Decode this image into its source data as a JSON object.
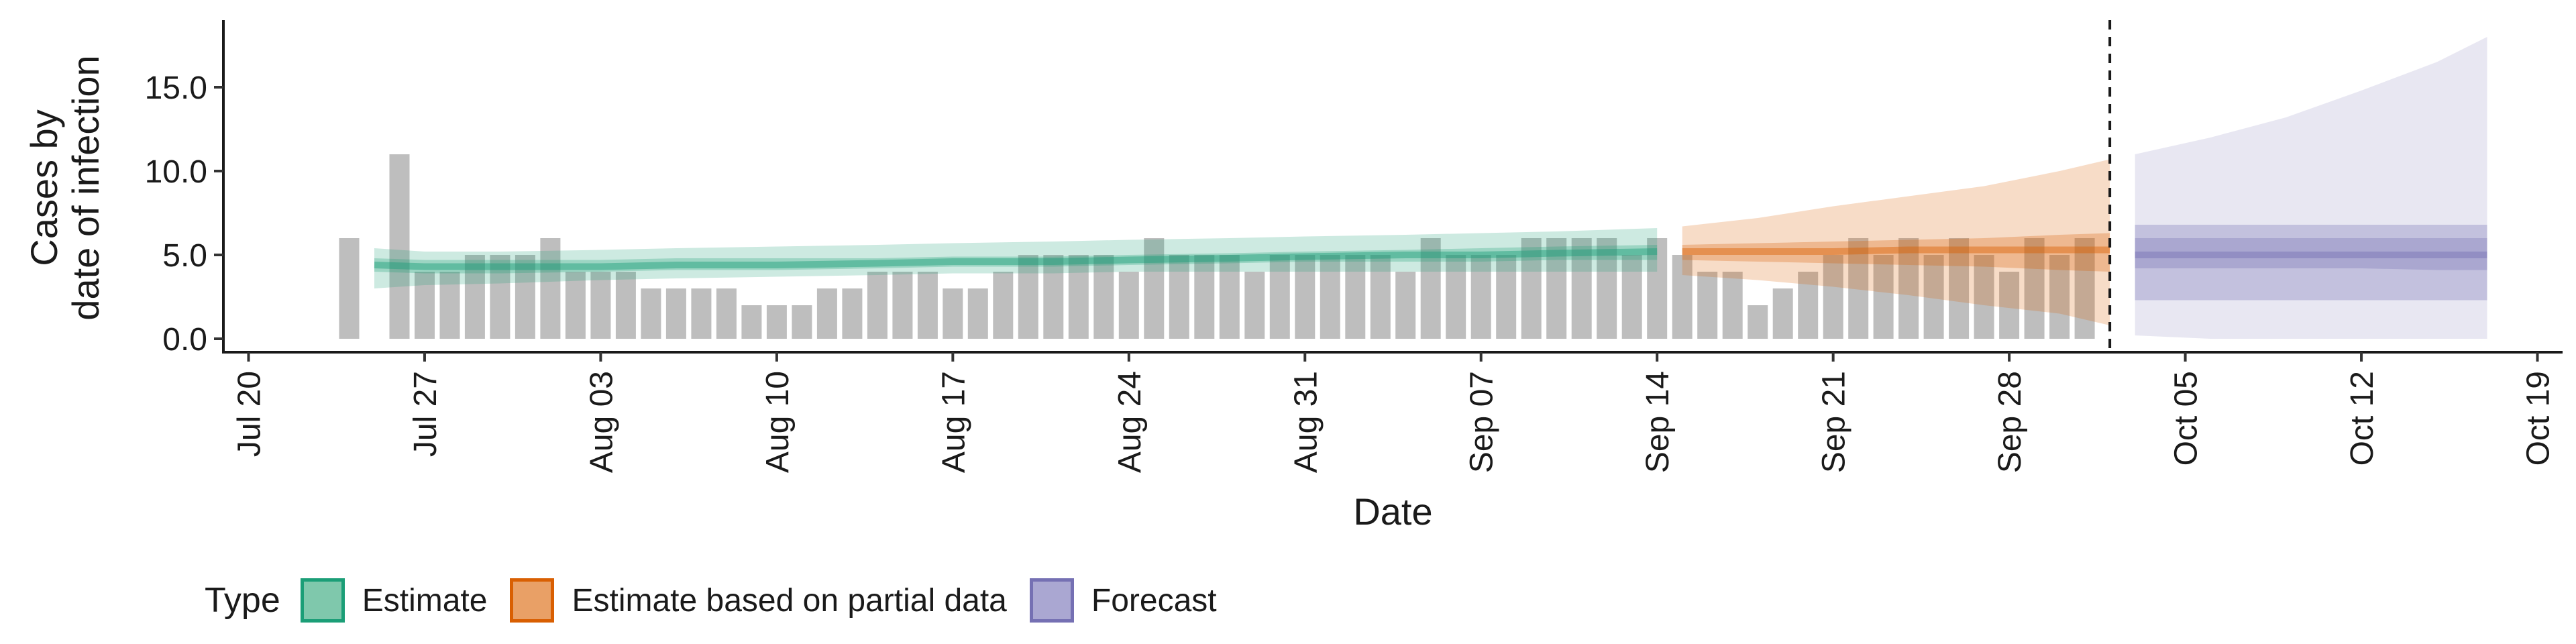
{
  "chart_data": {
    "type": "area",
    "xlabel": "Date",
    "ylabel": [
      "Cases by",
      "date of infection"
    ],
    "ylim": [
      -0.8,
      18.8
    ],
    "yticks": [
      "0.0",
      "5.0",
      "10.0",
      "15.0"
    ],
    "xlim": [
      "2020-07-19",
      "2020-10-20"
    ],
    "xticks": [
      {
        "date": "2020-07-20",
        "label": "Jul 20"
      },
      {
        "date": "2020-07-27",
        "label": "Jul 27"
      },
      {
        "date": "2020-08-03",
        "label": "Aug 03"
      },
      {
        "date": "2020-08-10",
        "label": "Aug 10"
      },
      {
        "date": "2020-08-17",
        "label": "Aug 17"
      },
      {
        "date": "2020-08-24",
        "label": "Aug 24"
      },
      {
        "date": "2020-08-31",
        "label": "Aug 31"
      },
      {
        "date": "2020-09-07",
        "label": "Sep 07"
      },
      {
        "date": "2020-09-14",
        "label": "Sep 14"
      },
      {
        "date": "2020-09-21",
        "label": "Sep 21"
      },
      {
        "date": "2020-09-28",
        "label": "Sep 28"
      },
      {
        "date": "2020-10-05",
        "label": "Oct 05"
      },
      {
        "date": "2020-10-12",
        "label": "Oct 12"
      },
      {
        "date": "2020-10-19",
        "label": "Oct 19"
      }
    ],
    "grid": false,
    "legend_position": "bottom",
    "forecast_line_date": "2020-10-02",
    "observed_cases": {
      "start_date": "2020-07-24",
      "values": [
        6,
        0,
        11,
        4,
        4,
        5,
        5,
        5,
        6,
        4,
        4,
        4,
        3,
        3,
        3,
        3,
        2,
        2,
        2,
        3,
        3,
        4,
        4,
        4,
        3,
        3,
        4,
        5,
        5,
        5,
        5,
        4,
        6,
        5,
        5,
        5,
        4,
        5,
        5,
        5,
        5,
        5,
        4,
        6,
        5,
        5,
        5,
        6,
        6,
        6,
        6,
        5,
        6,
        5,
        4,
        4,
        2,
        3,
        4,
        5,
        6,
        5,
        6,
        5,
        6,
        5,
        4,
        6,
        5,
        6
      ],
      "color": "#bebebe"
    },
    "series": [
      {
        "name": "Estimate",
        "color": "#1b9e77",
        "dates": [
          "2020-07-25",
          "2020-07-27",
          "2020-07-30",
          "2020-08-03",
          "2020-08-06",
          "2020-08-10",
          "2020-08-14",
          "2020-08-17",
          "2020-08-21",
          "2020-08-24",
          "2020-08-28",
          "2020-08-31",
          "2020-09-04",
          "2020-09-07",
          "2020-09-10",
          "2020-09-14"
        ],
        "median": [
          4.4,
          4.3,
          4.3,
          4.3,
          4.4,
          4.4,
          4.5,
          4.6,
          4.6,
          4.7,
          4.8,
          4.9,
          5.0,
          5.0,
          5.1,
          5.2
        ],
        "lower_50": [
          4.0,
          3.9,
          3.9,
          4.0,
          4.1,
          4.1,
          4.2,
          4.3,
          4.3,
          4.4,
          4.5,
          4.6,
          4.6,
          4.6,
          4.7,
          4.7
        ],
        "upper_50": [
          4.8,
          4.7,
          4.7,
          4.7,
          4.8,
          4.8,
          4.8,
          4.9,
          4.9,
          5.0,
          5.1,
          5.2,
          5.3,
          5.4,
          5.5,
          5.6
        ],
        "lower_90": [
          3.0,
          3.2,
          3.3,
          3.5,
          3.6,
          3.7,
          3.8,
          3.9,
          3.9,
          4.0,
          4.0,
          4.0,
          4.0,
          4.0,
          4.0,
          4.0
        ],
        "upper_90": [
          5.4,
          5.2,
          5.2,
          5.3,
          5.4,
          5.5,
          5.6,
          5.7,
          5.8,
          5.9,
          6.0,
          6.1,
          6.2,
          6.3,
          6.4,
          6.6
        ]
      },
      {
        "name": "Estimate based on partial data",
        "color": "#d95f02",
        "dates": [
          "2020-09-15",
          "2020-09-18",
          "2020-09-21",
          "2020-09-24",
          "2020-09-27",
          "2020-09-30",
          "2020-10-02"
        ],
        "median": [
          5.2,
          5.2,
          5.2,
          5.3,
          5.3,
          5.3,
          5.3
        ],
        "lower_50": [
          4.7,
          4.6,
          4.5,
          4.4,
          4.3,
          4.1,
          4.0
        ],
        "upper_50": [
          5.6,
          5.7,
          5.8,
          5.9,
          6.0,
          6.2,
          6.3
        ],
        "lower_90": [
          3.8,
          3.5,
          3.1,
          2.6,
          2.0,
          1.5,
          0.8
        ],
        "upper_90": [
          6.7,
          7.2,
          7.9,
          8.5,
          9.1,
          10.0,
          10.7
        ]
      },
      {
        "name": "Forecast",
        "color": "#7570b3",
        "dates": [
          "2020-10-03",
          "2020-10-06",
          "2020-10-09",
          "2020-10-12",
          "2020-10-15",
          "2020-10-17"
        ],
        "median": [
          5.0,
          5.0,
          5.0,
          5.0,
          5.0,
          5.0
        ],
        "lower_50": [
          4.2,
          4.2,
          4.2,
          4.2,
          4.1,
          4.1
        ],
        "upper_50": [
          6.0,
          6.0,
          6.0,
          6.0,
          6.0,
          6.0
        ],
        "lower_90": [
          2.3,
          2.3,
          2.3,
          2.3,
          2.3,
          2.3
        ],
        "upper_90": [
          6.8,
          6.8,
          6.8,
          6.8,
          6.8,
          6.8
        ],
        "lower_outer": [
          0.2,
          0.0,
          0.0,
          0.0,
          0.0,
          0.0
        ],
        "upper_outer": [
          11.0,
          12.0,
          13.2,
          14.8,
          16.5,
          18.0
        ]
      }
    ]
  },
  "legend": {
    "title": "Type",
    "items": [
      {
        "label": "Estimate",
        "fill": "#7fc8ac",
        "border": "#1b9e77"
      },
      {
        "label": "Estimate based on partial data",
        "fill": "#e9a066",
        "border": "#d95f02"
      },
      {
        "label": "Forecast",
        "fill": "#aaa7d2",
        "border": "#7570b3"
      }
    ]
  }
}
